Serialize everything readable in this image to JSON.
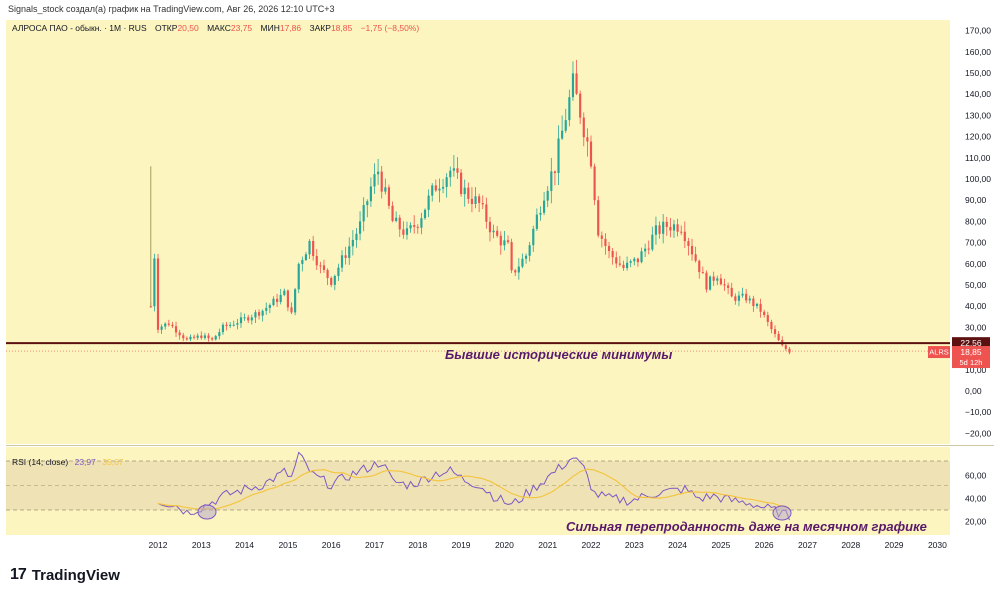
{
  "attribution": "Signals_stock создал(а) график на TradingView.com, Авг 26, 2026 12:10 UTC+3",
  "header": {
    "symbol": "АЛРОСА ПАО - обыкн. · 1M · RUS",
    "open_label": "ОТКР",
    "open": "20,50",
    "high_label": "МАКС",
    "high": "23,75",
    "low_label": "МИН",
    "low": "17,86",
    "close_label": "ЗАКР",
    "close": "18,85",
    "change": "−1,75 (−8,50%)"
  },
  "colors": {
    "background": "#fcf5c0",
    "up": "#26a69a",
    "down": "#ef5350",
    "support_line": "#5d1010",
    "rsi_line": "#7e57c2",
    "rsi_ma": "#f4c542",
    "rsi_band": "#efe3b6",
    "annotation": "#5a1a6a"
  },
  "price_scale_labels": [
    "170,00",
    "160,00",
    "150,00",
    "140,00",
    "130,00",
    "120,00",
    "110,00",
    "100,00",
    "90,00",
    "80,00",
    "70,00",
    "60,00",
    "50,00",
    "40,00",
    "30,00",
    "20,00",
    "10,00",
    "0,00",
    "−10,00",
    "−20,00"
  ],
  "rsi_scale_labels": [
    "60,00",
    "40,00",
    "20,00"
  ],
  "time_labels": [
    "2012",
    "2013",
    "2014",
    "2015",
    "2016",
    "2017",
    "2018",
    "2019",
    "2020",
    "2021",
    "2022",
    "2023",
    "2024",
    "2025",
    "2026",
    "2027",
    "2028",
    "2029",
    "2030"
  ],
  "price_tags": {
    "support_value": "22,56",
    "ticker": "ALRS",
    "last": "18,85",
    "countdown": "5d 12h"
  },
  "annotations": {
    "support": "Бывшие исторические минимумы",
    "rsi": "Сильная перепроданность даже на месячном графике"
  },
  "rsi_legend": {
    "label": "RSI (14; close)",
    "value": "23,97",
    "ma_value": "35,67"
  },
  "brand": {
    "name": "TradingView",
    "mark_icon": "tv-logo-icon"
  },
  "chart_data": {
    "type": "candlestick",
    "price_axis": {
      "min": -25,
      "max": 175,
      "unit": "RUB"
    },
    "time_axis": {
      "start_year": 2011,
      "end_year": 2030
    },
    "support_level": 22.56,
    "last_price": 18.85,
    "monthly_closes_anchors": [
      [
        "2011-11",
        40
      ],
      [
        "2011-12",
        64
      ],
      [
        "2012-01",
        30
      ],
      [
        "2012-04",
        32
      ],
      [
        "2012-09",
        24
      ],
      [
        "2013-01",
        26
      ],
      [
        "2013-04",
        24
      ],
      [
        "2013-07",
        30
      ],
      [
        "2014-01",
        34
      ],
      [
        "2014-06",
        38
      ],
      [
        "2014-12",
        46
      ],
      [
        "2015-02",
        36
      ],
      [
        "2015-04",
        60
      ],
      [
        "2015-07",
        70
      ],
      [
        "2015-10",
        58
      ],
      [
        "2016-01",
        52
      ],
      [
        "2016-05",
        65
      ],
      [
        "2016-09",
        78
      ],
      [
        "2016-12",
        96
      ],
      [
        "2017-02",
        104
      ],
      [
        "2017-06",
        80
      ],
      [
        "2017-10",
        74
      ],
      [
        "2018-01",
        80
      ],
      [
        "2018-06",
        97
      ],
      [
        "2018-10",
        104
      ],
      [
        "2019-02",
        94
      ],
      [
        "2019-06",
        88
      ],
      [
        "2019-10",
        74
      ],
      [
        "2020-02",
        68
      ],
      [
        "2020-03",
        55
      ],
      [
        "2020-07",
        64
      ],
      [
        "2020-12",
        94
      ],
      [
        "2021-03",
        106
      ],
      [
        "2021-06",
        130
      ],
      [
        "2021-08",
        144
      ],
      [
        "2021-10",
        132
      ],
      [
        "2022-01",
        110
      ],
      [
        "2022-03",
        76
      ],
      [
        "2022-06",
        65
      ],
      [
        "2022-10",
        58
      ],
      [
        "2023-02",
        62
      ],
      [
        "2023-07",
        75
      ],
      [
        "2023-10",
        78
      ],
      [
        "2024-02",
        78
      ],
      [
        "2024-06",
        62
      ],
      [
        "2024-09",
        50
      ],
      [
        "2024-12",
        55
      ],
      [
        "2025-04",
        44
      ],
      [
        "2025-08",
        44
      ],
      [
        "2025-12",
        38
      ],
      [
        "2026-03",
        29
      ],
      [
        "2026-06",
        21
      ],
      [
        "2026-08",
        18.85
      ]
    ],
    "rsi": {
      "range": [
        0,
        100
      ],
      "levels": [
        30,
        50,
        70
      ],
      "anchors": [
        [
          "2012-01",
          38
        ],
        [
          "2012-06",
          34
        ],
        [
          "2012-09",
          28
        ],
        [
          "2013-01",
          32
        ],
        [
          "2013-07",
          42
        ],
        [
          "2014-01",
          48
        ],
        [
          "2014-06",
          52
        ],
        [
          "2014-12",
          63
        ],
        [
          "2015-02",
          58
        ],
        [
          "2015-04",
          78
        ],
        [
          "2015-08",
          60
        ],
        [
          "2016-01",
          52
        ],
        [
          "2016-06",
          60
        ],
        [
          "2016-12",
          68
        ],
        [
          "2017-03",
          72
        ],
        [
          "2017-06",
          55
        ],
        [
          "2017-10",
          52
        ],
        [
          "2018-01",
          54
        ],
        [
          "2018-06",
          62
        ],
        [
          "2018-10",
          64
        ],
        [
          "2019-02",
          56
        ],
        [
          "2019-06",
          52
        ],
        [
          "2019-10",
          42
        ],
        [
          "2020-03",
          34
        ],
        [
          "2020-08",
          46
        ],
        [
          "2020-12",
          56
        ],
        [
          "2021-04",
          66
        ],
        [
          "2021-08",
          76
        ],
        [
          "2021-11",
          66
        ],
        [
          "2022-02",
          44
        ],
        [
          "2022-06",
          40
        ],
        [
          "2022-12",
          38
        ],
        [
          "2023-06",
          44
        ],
        [
          "2023-10",
          46
        ],
        [
          "2024-03",
          48
        ],
        [
          "2024-07",
          40
        ],
        [
          "2024-11",
          42
        ],
        [
          "2025-04",
          38
        ],
        [
          "2025-09",
          36
        ],
        [
          "2026-01",
          32
        ],
        [
          "2026-05",
          28
        ],
        [
          "2026-08",
          23.97
        ]
      ]
    }
  }
}
